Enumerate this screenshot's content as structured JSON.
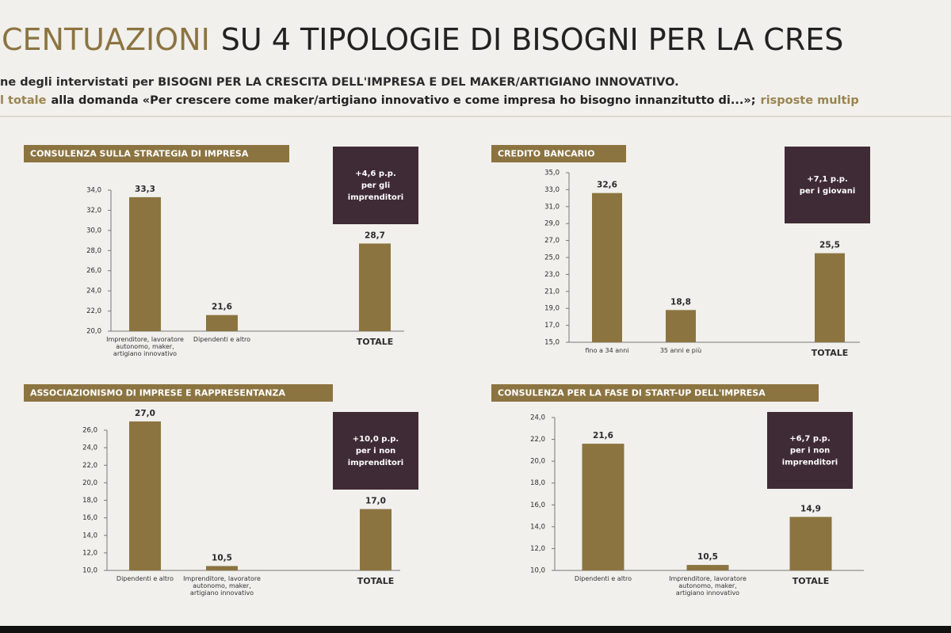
{
  "header": {
    "title": [
      "CENTUAZIONI",
      "SU 4 TIPOLOGIE DI BISOGNI PER LA CRES"
    ],
    "subtitle": "ne degli intervistati per BISOGNI PER LA CRESCITA DELL'IMPRESA E DEL MAKER/ARTIGIANO INNOVATIVO.",
    "question": [
      "l totale",
      "alla domanda «Per crescere come maker/artigiano innovativo e come impresa ho bisogno innanzitutto di...»;",
      "risposte multip"
    ]
  },
  "chart_data": [
    {
      "type": "bar",
      "title": "CONSULENZA SULLA STRATEGIA DI IMPRESA",
      "color": "#8c7441",
      "categories": [
        "Imprenditore, lavoratore autonomo, maker, artigiano innovativo",
        "Dipendenti e altro",
        "TOTALE"
      ],
      "values": [
        33.3,
        21.6,
        28.7
      ],
      "value_labels": [
        "33,3",
        "21,6",
        "28,7"
      ],
      "ylim": [
        20,
        34
      ],
      "yticks": [
        {
          "value": 20,
          "label": "20,0"
        },
        {
          "value": 22,
          "label": "22,0"
        },
        {
          "value": 24,
          "label": "24,0"
        },
        {
          "value": 26,
          "label": "26,0"
        },
        {
          "value": 28,
          "label": "28,0"
        },
        {
          "value": 30,
          "label": "30,0"
        },
        {
          "value": 32,
          "label": "32,0"
        },
        {
          "value": 34,
          "label": "34,0"
        }
      ],
      "annotation": [
        "+4,6 p.p.",
        "per gli",
        "imprenditori"
      ]
    },
    {
      "type": "bar",
      "title": "CREDITO BANCARIO",
      "color": "#8c7441",
      "categories": [
        "fino a 34 anni",
        "35 anni e più",
        "TOTALE"
      ],
      "values": [
        32.6,
        18.8,
        25.5
      ],
      "value_labels": [
        "32,6",
        "18,8",
        "25,5"
      ],
      "ylim": [
        15,
        35
      ],
      "yticks": [
        {
          "value": 15,
          "label": "15,0"
        },
        {
          "value": 17,
          "label": "17,0"
        },
        {
          "value": 19,
          "label": "19,0"
        },
        {
          "value": 21,
          "label": "21,0"
        },
        {
          "value": 23,
          "label": "23,0"
        },
        {
          "value": 25,
          "label": "25,0"
        },
        {
          "value": 27,
          "label": "27,0"
        },
        {
          "value": 29,
          "label": "29,0"
        },
        {
          "value": 31,
          "label": "31,0"
        },
        {
          "value": 33,
          "label": "33,0"
        },
        {
          "value": 35,
          "label": "35,0"
        }
      ],
      "annotation": [
        "+7,1 p.p.",
        "per i giovani"
      ]
    },
    {
      "type": "bar",
      "title": "ASSOCIAZIONISMO DI IMPRESE E RAPPRESENTANZA",
      "color": "#8c7441",
      "categories": [
        "Dipendenti e altro",
        "Imprenditore, lavoratore autonomo, maker, artigiano innovativo",
        "TOTALE"
      ],
      "values": [
        27.0,
        10.5,
        17.0
      ],
      "value_labels": [
        "27,0",
        "10,5",
        "17,0"
      ],
      "ylim": [
        10,
        26
      ],
      "yticks": [
        {
          "value": 10,
          "label": "10,0"
        },
        {
          "value": 12,
          "label": "12,0"
        },
        {
          "value": 14,
          "label": "14,0"
        },
        {
          "value": 16,
          "label": "16,0"
        },
        {
          "value": 18,
          "label": "18,0"
        },
        {
          "value": 20,
          "label": "20,0"
        },
        {
          "value": 22,
          "label": "22,0"
        },
        {
          "value": 24,
          "label": "24,0"
        },
        {
          "value": 26,
          "label": "26,0"
        }
      ],
      "annotation": [
        "+10,0 p.p.",
        "per i non",
        "imprenditori"
      ]
    },
    {
      "type": "bar",
      "title": "CONSULENZA PER LA FASE DI START-UP DELL'IMPRESA",
      "color": "#8c7441",
      "categories": [
        "Dipendenti e altro",
        "Imprenditore, lavoratore autonomo, maker, artigiano innovativo",
        "TOTALE"
      ],
      "values": [
        21.6,
        10.5,
        14.9
      ],
      "value_labels": [
        "21,6",
        "10,5",
        "14,9"
      ],
      "ylim": [
        10,
        24
      ],
      "yticks": [
        {
          "value": 10,
          "label": "10,0"
        },
        {
          "value": 12,
          "label": "12,0"
        },
        {
          "value": 14,
          "label": "14,0"
        },
        {
          "value": 16,
          "label": "16,0"
        },
        {
          "value": 18,
          "label": "18,0"
        },
        {
          "value": 20,
          "label": "20,0"
        },
        {
          "value": 22,
          "label": "22,0"
        },
        {
          "value": 24,
          "label": "24,0"
        }
      ],
      "annotation": [
        "+6,7 p.p.",
        "per i non",
        "imprenditori"
      ]
    }
  ]
}
